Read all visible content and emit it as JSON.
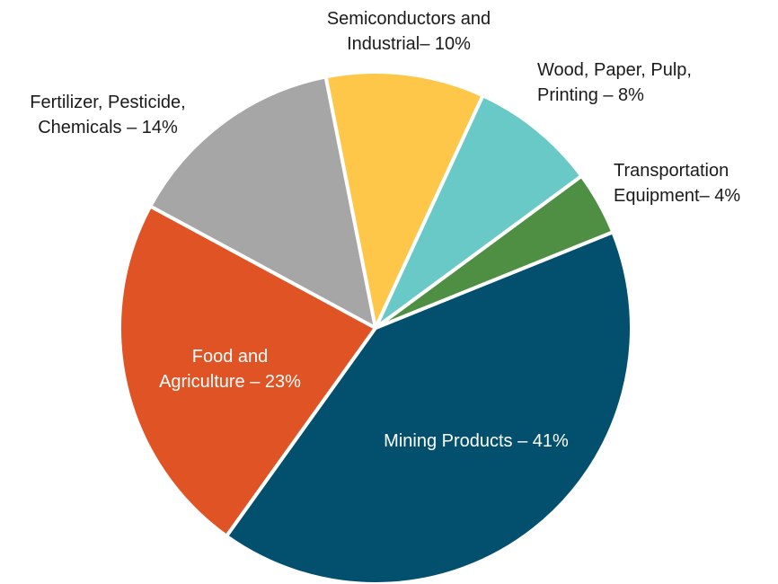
{
  "chart_data": {
    "type": "pie",
    "title": "",
    "slices": [
      {
        "label": "Mining Products – 41%",
        "lines": [
          "Mining Products – 41%"
        ],
        "value": 41,
        "color": "#02506e",
        "text": "light"
      },
      {
        "label": "Food and Agriculture – 23%",
        "lines": [
          "Food and",
          "Agriculture – 23%"
        ],
        "value": 23,
        "color": "#e05325",
        "text": "light"
      },
      {
        "label": "Fertilizer, Pesticide, Chemicals – 14%",
        "lines": [
          "Fertilizer, Pesticide,",
          "Chemicals – 14%"
        ],
        "value": 14,
        "color": "#a6a6a6",
        "text": "dark"
      },
      {
        "label": "Semiconductors and Industrial– 10%",
        "lines": [
          "Semiconductors and",
          "Industrial– 10%"
        ],
        "value": 10,
        "color": "#fec74a",
        "text": "dark"
      },
      {
        "label": "Wood, Paper, Pulp, Printing – 8%",
        "lines": [
          "Wood, Paper, Pulp,",
          "Printing – 8%"
        ],
        "value": 8,
        "color": "#68c9c7",
        "text": "dark"
      },
      {
        "label": "Transportation Equipment– 4%",
        "lines": [
          "Transportation",
          "Equipment– 4%"
        ],
        "value": 4,
        "color": "#4e8f43",
        "text": "dark"
      }
    ]
  }
}
